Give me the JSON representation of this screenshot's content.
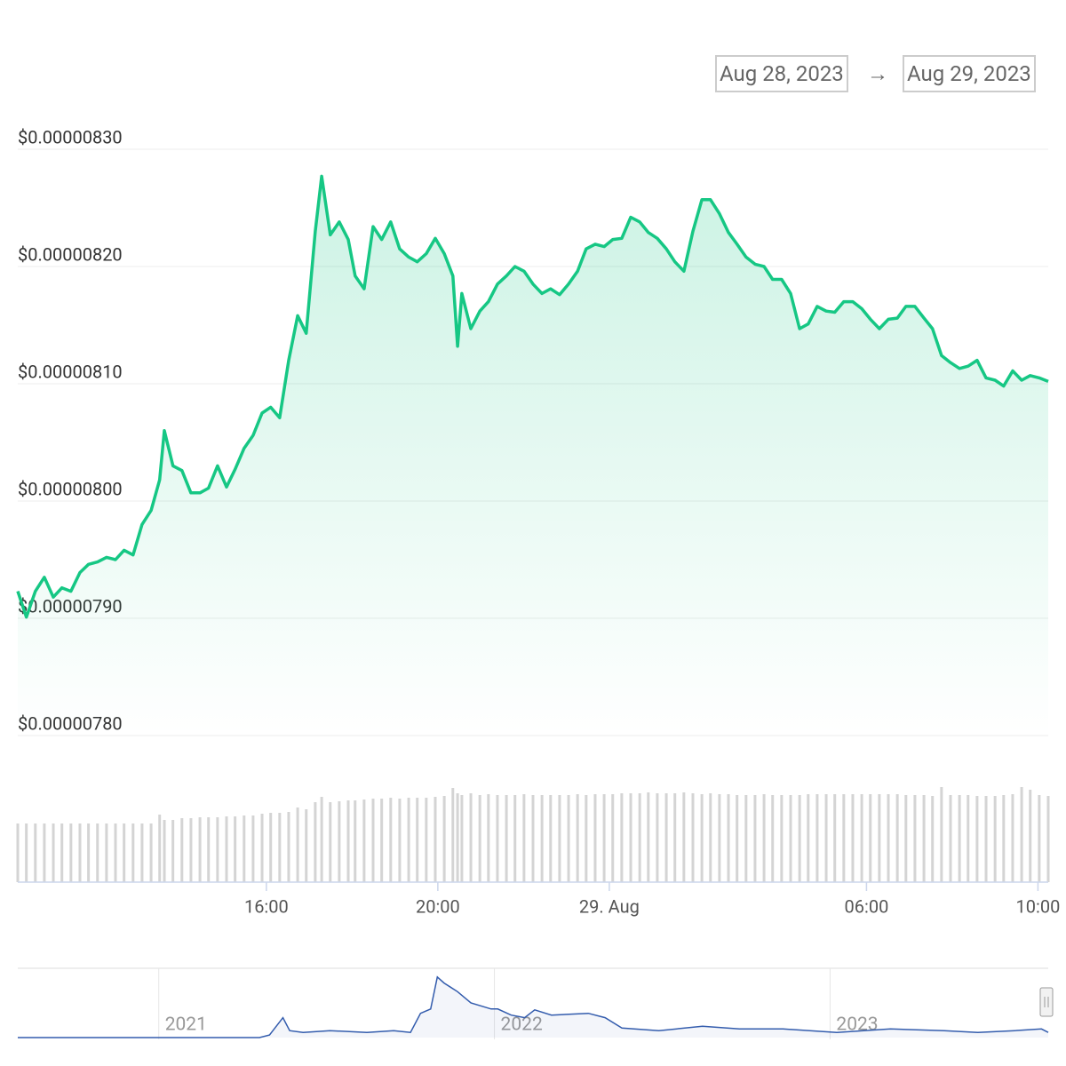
{
  "date_range": {
    "from": "Aug 28, 2023",
    "separator": "→",
    "to": "Aug 29, 2023"
  },
  "chart_data": [
    {
      "type": "line",
      "x": [
        10.2,
        10.4,
        10.61,
        10.82,
        11.03,
        11.23,
        11.44,
        11.65,
        11.85,
        12.06,
        12.27,
        12.48,
        12.68,
        12.89,
        13.1,
        13.31,
        13.51,
        13.62,
        13.82,
        14.03,
        14.24,
        14.45,
        14.65,
        14.86,
        15.07,
        15.27,
        15.48,
        15.69,
        15.9,
        16.1,
        16.31,
        16.52,
        16.73,
        16.93,
        17.14,
        17.29,
        17.49,
        17.7,
        17.91,
        18.07,
        18.28,
        18.49,
        18.69,
        18.9,
        19.11,
        19.32,
        19.52,
        19.73,
        19.94,
        20.15,
        20.35,
        20.46,
        20.56,
        20.77,
        20.98,
        21.18,
        21.39,
        21.6,
        21.8,
        22.01,
        22.22,
        22.43,
        22.63,
        22.84,
        23.05,
        23.26,
        23.46,
        23.67,
        23.88,
        24.08,
        24.29,
        24.5,
        24.71,
        24.91,
        25.12,
        25.33,
        25.53,
        25.74,
        25.95,
        26.16,
        26.36,
        26.57,
        26.78,
        26.98,
        27.19,
        27.4,
        27.61,
        27.81,
        28.02,
        28.23,
        28.44,
        28.64,
        28.85,
        29.06,
        29.26,
        29.47,
        29.68,
        29.89,
        30.09,
        30.3,
        30.51,
        30.72,
        30.92,
        31.13,
        31.34,
        31.54,
        31.75,
        31.96,
        32.17,
        32.37,
        32.58,
        32.79,
        33.0,
        33.2,
        33.41,
        33.62,
        33.82,
        34.03,
        34.24
      ],
      "series": [
        {
          "color": "#16c784",
          "values": [
            7.923e-06,
            7.901e-06,
            7.923e-06,
            7.935e-06,
            7.918e-06,
            7.926e-06,
            7.923e-06,
            7.939e-06,
            7.946e-06,
            7.948e-06,
            7.952e-06,
            7.95e-06,
            7.958e-06,
            7.954e-06,
            7.98e-06,
            7.992e-06,
            8.018e-06,
            8.06e-06,
            8.03e-06,
            8.026e-06,
            8.007e-06,
            8.007e-06,
            8.011e-06,
            8.03e-06,
            8.012e-06,
            8.027e-06,
            8.045e-06,
            8.056e-06,
            8.075e-06,
            8.08e-06,
            8.071e-06,
            8.12e-06,
            8.158e-06,
            8.143e-06,
            8.23e-06,
            8.277e-06,
            8.227e-06,
            8.238e-06,
            8.223e-06,
            8.192e-06,
            8.181e-06,
            8.234e-06,
            8.223e-06,
            8.238e-06,
            8.215e-06,
            8.208e-06,
            8.204e-06,
            8.211e-06,
            8.224e-06,
            8.211e-06,
            8.192e-06,
            8.132e-06,
            8.177e-06,
            8.147e-06,
            8.162e-06,
            8.17e-06,
            8.185e-06,
            8.192e-06,
            8.2e-06,
            8.196e-06,
            8.185e-06,
            8.177e-06,
            8.181e-06,
            8.176e-06,
            8.185e-06,
            8.196e-06,
            8.215e-06,
            8.219e-06,
            8.217e-06,
            8.223e-06,
            8.224e-06,
            8.242e-06,
            8.238e-06,
            8.229e-06,
            8.224e-06,
            8.215e-06,
            8.204e-06,
            8.196e-06,
            8.23e-06,
            8.257e-06,
            8.257e-06,
            8.245e-06,
            8.229e-06,
            8.219e-06,
            8.208e-06,
            8.202e-06,
            8.2e-06,
            8.189e-06,
            8.189e-06,
            8.177e-06,
            8.147e-06,
            8.151e-06,
            8.166e-06,
            8.162e-06,
            8.161e-06,
            8.17e-06,
            8.17e-06,
            8.164e-06,
            8.155e-06,
            8.147e-06,
            8.155e-06,
            8.156e-06,
            8.166e-06,
            8.166e-06,
            8.156e-06,
            8.147e-06,
            8.124e-06,
            8.118e-06,
            8.113e-06,
            8.115e-06,
            8.12e-06,
            8.105e-06,
            8.103e-06,
            8.098e-06,
            8.111e-06,
            8.103e-06,
            8.107e-06,
            8.105e-06,
            8.102e-06
          ]
        },
        {
          "type": "bar",
          "axis": "y2",
          "color": "#d4d4d4",
          "values": [
            66,
            66,
            66,
            66,
            66,
            66,
            66,
            66,
            66,
            66,
            66,
            66,
            66,
            66,
            66,
            66,
            76,
            70,
            70,
            72,
            72,
            73,
            73,
            73,
            74,
            74,
            75,
            75,
            77,
            78,
            78,
            79,
            84,
            82,
            90,
            96,
            90,
            91,
            92,
            92,
            93,
            94,
            94,
            95,
            94,
            95,
            95,
            95,
            96,
            97,
            106,
            100,
            98,
            100,
            98,
            99,
            98,
            98,
            98,
            99,
            98,
            98,
            98,
            98,
            98,
            99,
            98,
            99,
            99,
            99,
            100,
            100,
            100,
            101,
            100,
            100,
            100,
            101,
            100,
            99,
            100,
            99,
            99,
            98,
            98,
            98,
            99,
            98,
            98,
            98,
            98,
            99,
            99,
            99,
            99,
            99,
            99,
            99,
            99,
            99,
            99,
            99,
            98,
            98,
            98,
            97,
            107,
            98,
            98,
            98,
            97,
            97,
            97,
            98,
            99,
            107,
            104,
            98,
            97
          ]
        }
      ],
      "xlim": [
        10.2,
        34.24
      ],
      "xticks": [
        {
          "value": 16,
          "label": "16:00"
        },
        {
          "value": 20,
          "label": "20:00"
        },
        {
          "value": 24,
          "label": "29. Aug"
        },
        {
          "value": 30,
          "label": "06:00"
        },
        {
          "value": 34,
          "label": "10:00"
        }
      ],
      "ylim": [
        7.8e-06,
        8.3e-06
      ],
      "yticks": [
        {
          "value": 7.8e-06,
          "label": "$0.00000780"
        },
        {
          "value": 7.9e-06,
          "label": "$0.00000790"
        },
        {
          "value": 8e-06,
          "label": "$0.00000800"
        },
        {
          "value": 8.1e-06,
          "label": "$0.00000810"
        },
        {
          "value": 8.2e-06,
          "label": "$0.00000820"
        },
        {
          "value": 8.3e-06,
          "label": "$0.00000830"
        }
      ],
      "y2lim": [
        0,
        115
      ],
      "grid": true
    },
    {
      "type": "area",
      "x": [
        2020.58,
        2021.3,
        2021.33,
        2021.37,
        2021.39,
        2021.43,
        2021.51,
        2021.62,
        2021.7,
        2021.75,
        2021.78,
        2021.81,
        2021.83,
        2021.85,
        2021.89,
        2021.93,
        2021.99,
        2022.01,
        2022.05,
        2022.09,
        2022.12,
        2022.17,
        2022.28,
        2022.33,
        2022.38,
        2022.49,
        2022.62,
        2022.73,
        2022.86,
        2023.02,
        2023.18,
        2023.34,
        2023.44,
        2023.55,
        2023.63,
        2023.65
      ],
      "values": [
        0,
        0,
        3,
        23,
        8,
        6,
        8,
        6,
        8,
        6,
        28,
        33,
        70,
        63,
        53,
        40,
        33,
        33,
        26,
        23,
        32,
        26,
        28,
        23,
        11,
        8,
        13,
        10,
        10,
        6,
        10,
        8,
        6,
        8,
        10,
        6
      ],
      "color": "#335cad",
      "xlim": [
        2020.58,
        2023.65
      ],
      "ylim": [
        0,
        80
      ],
      "xticks": [
        2021,
        2022,
        2023
      ]
    }
  ]
}
